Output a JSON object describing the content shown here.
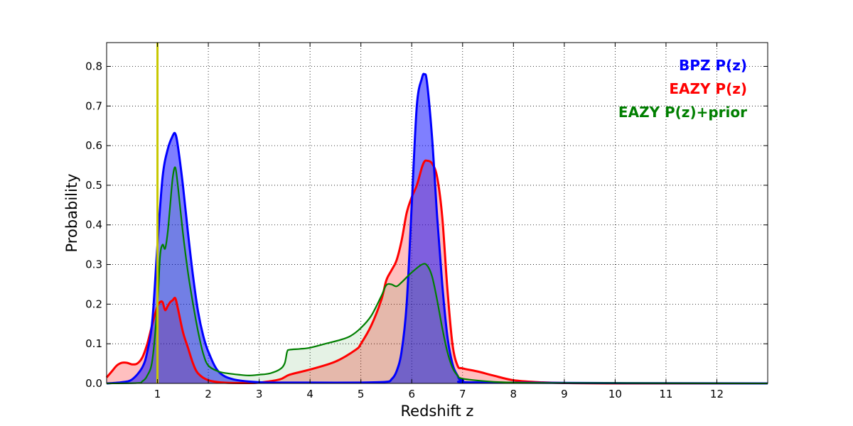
{
  "chart_data": {
    "type": "area",
    "title": "",
    "xlabel": "Redshift z",
    "ylabel": "Probability",
    "xlim": [
      0,
      13
    ],
    "ylim": [
      0,
      0.86
    ],
    "xticks": [
      1,
      2,
      3,
      4,
      5,
      6,
      7,
      8,
      9,
      10,
      11,
      12
    ],
    "yticks": [
      0.0,
      0.1,
      0.2,
      0.3,
      0.4,
      0.5,
      0.6,
      0.7,
      0.8
    ],
    "ytick_labels": [
      "0.0",
      "0.1",
      "0.2",
      "0.3",
      "0.4",
      "0.5",
      "0.6",
      "0.7",
      "0.8"
    ],
    "grid": true,
    "legend_position": "top-right",
    "vertical_line": {
      "x": 1.0,
      "color": "#c8c800"
    },
    "series": [
      {
        "name": "BPZ P(z)",
        "color": "#0000ff",
        "fill": "#0000ff",
        "fill_opacity": 0.5,
        "x": [
          0,
          0.3,
          0.5,
          0.7,
          0.8,
          0.9,
          1.0,
          1.1,
          1.2,
          1.3,
          1.35,
          1.4,
          1.5,
          1.6,
          1.7,
          1.8,
          1.9,
          2.0,
          2.2,
          2.5,
          3.0,
          3.5,
          4.0,
          5.0,
          5.5,
          5.6,
          5.7,
          5.8,
          5.9,
          6.0,
          6.1,
          6.2,
          6.25,
          6.3,
          6.4,
          6.5,
          6.6,
          6.7,
          6.8,
          6.9,
          7.0,
          7.5,
          13
        ],
        "y": [
          0,
          0.003,
          0.01,
          0.04,
          0.08,
          0.16,
          0.35,
          0.52,
          0.59,
          0.625,
          0.63,
          0.6,
          0.5,
          0.38,
          0.27,
          0.18,
          0.12,
          0.08,
          0.03,
          0.01,
          0.003,
          0.002,
          0.002,
          0.002,
          0.004,
          0.01,
          0.03,
          0.08,
          0.2,
          0.45,
          0.7,
          0.77,
          0.78,
          0.76,
          0.62,
          0.42,
          0.25,
          0.12,
          0.05,
          0.02,
          0.008,
          0.002,
          0
        ]
      },
      {
        "name": "EAZY P(z)",
        "color": "#ff0000",
        "fill": "#ff0000",
        "fill_opacity": 0.25,
        "x": [
          0,
          0.1,
          0.2,
          0.3,
          0.4,
          0.5,
          0.6,
          0.7,
          0.8,
          0.9,
          1.0,
          1.05,
          1.1,
          1.15,
          1.2,
          1.25,
          1.3,
          1.35,
          1.4,
          1.5,
          1.6,
          1.7,
          1.8,
          2.0,
          2.3,
          2.7,
          3.0,
          3.4,
          3.6,
          4.0,
          4.5,
          4.9,
          5.0,
          5.2,
          5.4,
          5.5,
          5.6,
          5.7,
          5.8,
          5.9,
          6.0,
          6.1,
          6.2,
          6.25,
          6.3,
          6.4,
          6.5,
          6.6,
          6.7,
          6.8,
          6.9,
          7.0,
          7.3,
          7.6,
          8.0,
          8.5,
          9.0,
          10.0,
          13
        ],
        "y": [
          0.015,
          0.03,
          0.045,
          0.052,
          0.052,
          0.048,
          0.05,
          0.065,
          0.1,
          0.15,
          0.195,
          0.205,
          0.205,
          0.185,
          0.195,
          0.205,
          0.21,
          0.215,
          0.19,
          0.13,
          0.09,
          0.05,
          0.025,
          0.008,
          0.002,
          0.001,
          0.002,
          0.01,
          0.022,
          0.035,
          0.055,
          0.085,
          0.1,
          0.145,
          0.21,
          0.26,
          0.285,
          0.31,
          0.36,
          0.43,
          0.47,
          0.5,
          0.545,
          0.56,
          0.562,
          0.555,
          0.52,
          0.42,
          0.24,
          0.1,
          0.045,
          0.038,
          0.03,
          0.02,
          0.008,
          0.003,
          0.001,
          0,
          0
        ]
      },
      {
        "name": "EAZY P(z)+prior",
        "color": "#007f00",
        "fill": "#007f00",
        "fill_opacity": 0.1,
        "x": [
          0,
          0.6,
          0.7,
          0.8,
          0.9,
          1.0,
          1.05,
          1.1,
          1.15,
          1.2,
          1.25,
          1.3,
          1.35,
          1.4,
          1.5,
          1.6,
          1.7,
          1.8,
          1.9,
          2.0,
          2.2,
          2.4,
          2.6,
          2.8,
          3.0,
          3.2,
          3.4,
          3.5,
          3.55,
          3.6,
          3.8,
          4.0,
          4.3,
          4.6,
          4.8,
          5.0,
          5.2,
          5.4,
          5.5,
          5.6,
          5.7,
          5.8,
          6.0,
          6.2,
          6.3,
          6.4,
          6.5,
          6.6,
          6.7,
          6.8,
          6.9,
          7.0,
          7.5,
          8.0,
          9.0,
          13
        ],
        "y": [
          0,
          0.001,
          0.005,
          0.02,
          0.06,
          0.2,
          0.32,
          0.35,
          0.34,
          0.38,
          0.45,
          0.52,
          0.545,
          0.5,
          0.38,
          0.28,
          0.2,
          0.13,
          0.075,
          0.045,
          0.03,
          0.025,
          0.022,
          0.02,
          0.022,
          0.025,
          0.035,
          0.05,
          0.08,
          0.085,
          0.087,
          0.09,
          0.1,
          0.11,
          0.12,
          0.14,
          0.17,
          0.22,
          0.248,
          0.25,
          0.245,
          0.255,
          0.28,
          0.3,
          0.298,
          0.27,
          0.21,
          0.14,
          0.08,
          0.04,
          0.02,
          0.012,
          0.005,
          0.002,
          0.001,
          0
        ]
      }
    ]
  }
}
